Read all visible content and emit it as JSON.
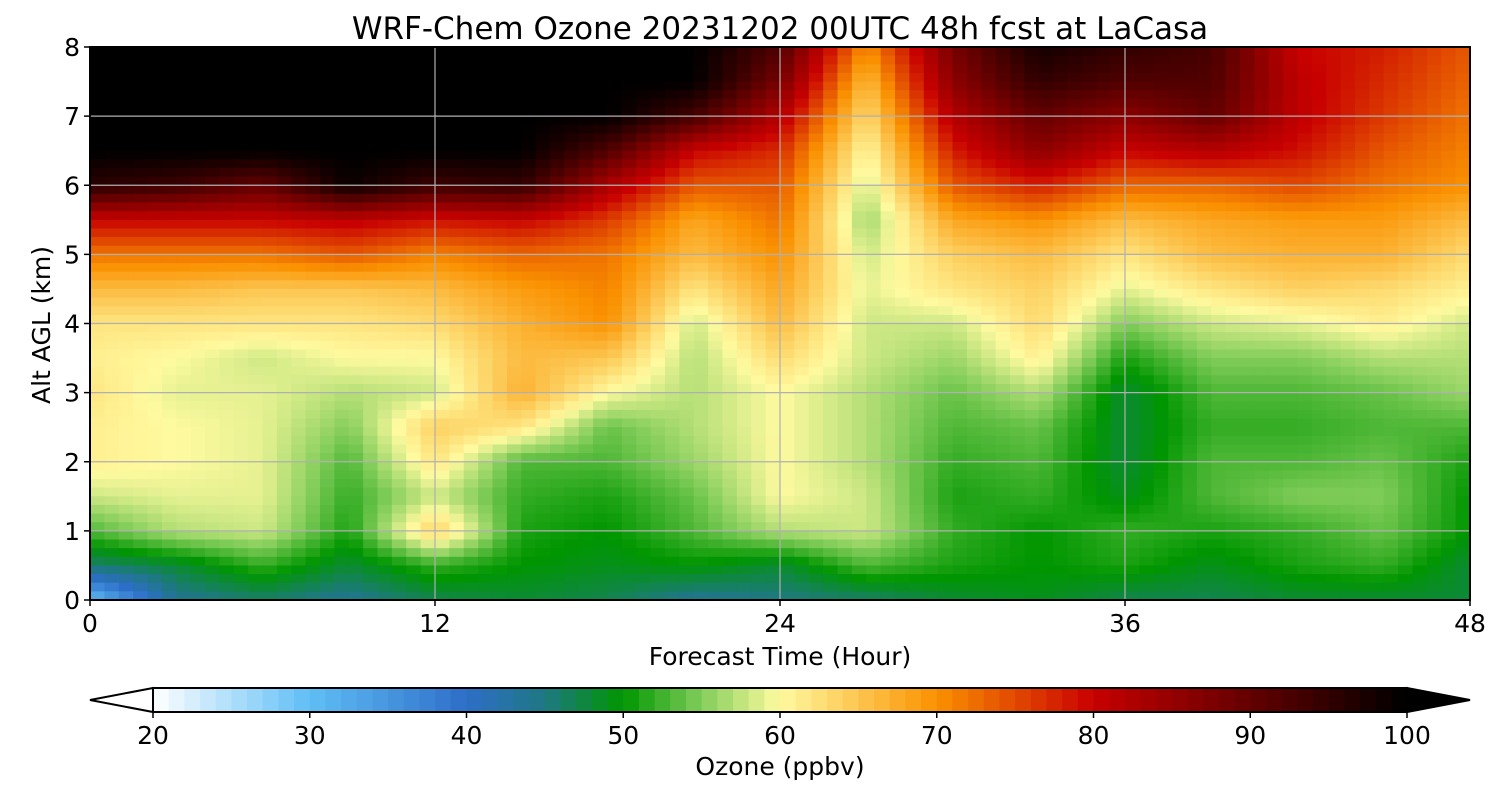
{
  "chart_data": {
    "type": "heatmap",
    "title": "WRF-Chem Ozone  20231202 00UTC 48h fcst at LaCasa",
    "xlabel": "Forecast Time (Hour)",
    "ylabel": "Alt AGL (km)",
    "xlim": [
      0,
      48
    ],
    "ylim": [
      0,
      8
    ],
    "x_ticks": [
      0,
      12,
      24,
      36,
      48
    ],
    "y_ticks": [
      0,
      1,
      2,
      3,
      4,
      5,
      6,
      7,
      8
    ],
    "grid": true,
    "colorbar": {
      "label": "Ozone  (ppbv)",
      "vmin": 20,
      "vmax": 100,
      "ticks": [
        20,
        30,
        40,
        50,
        60,
        70,
        80,
        90,
        100
      ],
      "extend": "both",
      "orientation": "horizontal",
      "placement": "bottom"
    },
    "grid_hours": [
      0,
      3,
      6,
      9,
      12,
      15,
      18,
      21,
      24,
      27,
      30,
      33,
      36,
      39,
      42,
      45,
      48
    ],
    "grid_heights_km": [
      0,
      0.5,
      1,
      1.5,
      2,
      2.5,
      3,
      3.5,
      4,
      4.5,
      5,
      5.5,
      6,
      6.5,
      7,
      7.5,
      8
    ],
    "values_ppbv": [
      [
        30,
        44,
        46,
        44,
        47,
        48,
        47,
        44,
        45,
        46,
        48,
        49,
        47,
        47,
        48,
        48,
        48
      ],
      [
        46,
        48,
        52,
        48,
        52,
        50,
        49,
        50,
        48,
        53,
        51,
        50,
        51,
        49,
        51,
        52,
        48
      ],
      [
        53,
        57,
        58,
        51,
        64,
        51,
        50,
        53,
        57,
        58,
        52,
        50,
        52,
        51,
        52,
        54,
        50
      ],
      [
        58,
        59,
        59,
        52,
        58,
        52,
        51,
        54,
        60,
        58,
        51,
        52,
        49,
        53,
        55,
        55,
        50
      ],
      [
        61,
        60,
        59,
        53,
        62,
        53,
        53,
        56,
        60,
        57,
        52,
        53,
        48,
        53,
        53,
        54,
        51
      ],
      [
        61,
        60,
        59,
        55,
        64,
        62,
        54,
        57,
        60,
        57,
        53,
        54,
        48,
        52,
        52,
        53,
        53
      ],
      [
        62,
        59,
        59,
        57,
        58,
        67,
        60,
        57,
        60,
        57,
        54,
        57,
        48,
        53,
        53,
        54,
        56
      ],
      [
        61,
        60,
        58,
        60,
        60,
        66,
        65,
        57,
        63,
        58,
        56,
        61,
        51,
        55,
        55,
        57,
        57
      ],
      [
        62,
        62,
        62,
        62,
        63,
        67,
        70,
        58,
        66,
        58,
        58,
        63,
        55,
        58,
        59,
        61,
        58
      ],
      [
        66,
        66,
        65,
        65,
        66,
        69,
        71,
        62,
        68,
        59,
        62,
        64,
        59,
        62,
        64,
        63,
        61
      ],
      [
        72,
        72,
        72,
        74,
        71,
        73,
        72,
        66,
        70,
        58,
        64,
        66,
        62,
        66,
        67,
        67,
        63
      ],
      [
        80,
        80,
        80,
        81,
        79,
        80,
        76,
        68,
        72,
        56,
        68,
        70,
        66,
        68,
        69,
        69,
        66
      ],
      [
        96,
        94,
        90,
        99,
        94,
        95,
        83,
        74,
        74,
        58,
        74,
        78,
        73,
        73,
        75,
        72,
        70
      ],
      [
        100,
        100,
        100,
        100,
        100,
        100,
        92,
        80,
        77,
        60,
        78,
        86,
        80,
        82,
        79,
        74,
        71
      ],
      [
        100,
        100,
        100,
        100,
        100,
        100,
        100,
        93,
        82,
        63,
        82,
        90,
        86,
        90,
        81,
        76,
        72
      ],
      [
        100,
        100,
        100,
        100,
        100,
        100,
        100,
        100,
        88,
        66,
        86,
        95,
        92,
        92,
        81,
        77,
        73
      ],
      [
        100,
        100,
        100,
        100,
        100,
        100,
        100,
        100,
        92,
        70,
        88,
        98,
        95,
        93,
        80,
        78,
        74
      ]
    ]
  }
}
